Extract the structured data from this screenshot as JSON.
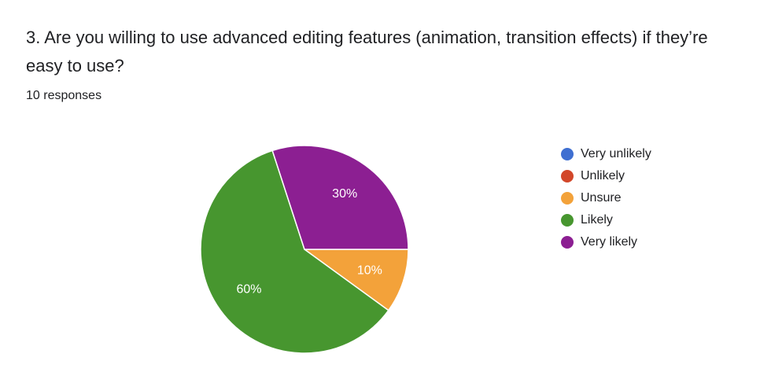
{
  "question": {
    "title": "3. Are you willing to use advanced editing features (animation, transition effects) if they’re easy to use?",
    "responses": "10 responses"
  },
  "chart_data": {
    "type": "pie",
    "categories": [
      "Very unlikely",
      "Unlikely",
      "Unsure",
      "Likely",
      "Very likely"
    ],
    "values": [
      0,
      0,
      10,
      60,
      30
    ],
    "labels": [
      "",
      "",
      "10%",
      "60%",
      "30%"
    ],
    "colors": [
      "#3366cc",
      "#dc3912",
      "#ff9900",
      "#109618",
      "#990099"
    ],
    "display_colors": [
      "#3f6fd1",
      "#d2472a",
      "#f3a23a",
      "#47962f",
      "#8c1f92"
    ],
    "legend_position": "right"
  }
}
